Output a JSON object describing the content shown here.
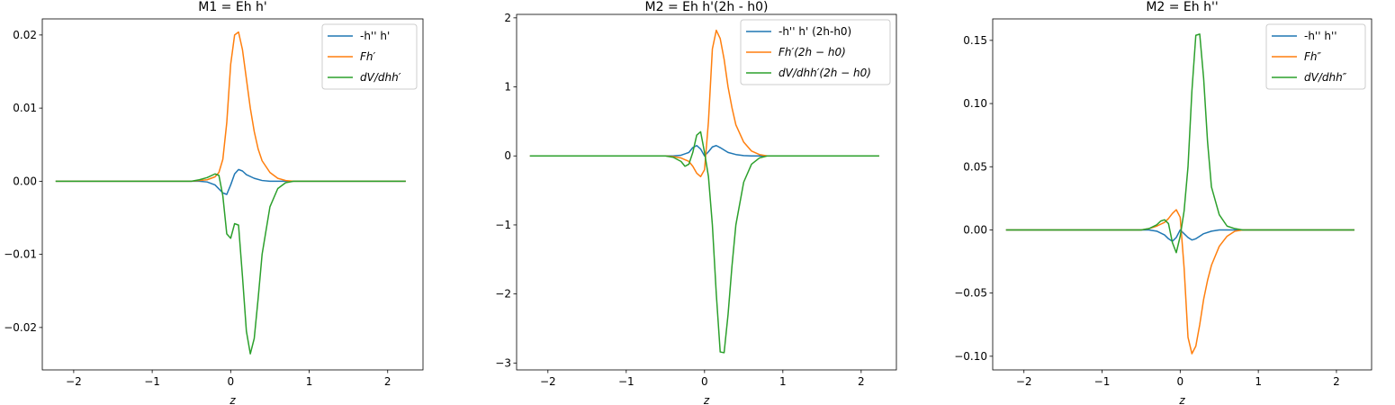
{
  "figure": {
    "background": "#ffffff"
  },
  "colors": {
    "blue": "#1f77b4",
    "orange": "#ff7f0e",
    "green": "#2ca02c"
  },
  "chart_data": [
    {
      "type": "line",
      "title": "M1 = Eh h'",
      "xlabel": "z",
      "ylabel": "",
      "xlim": [
        -2.4,
        2.45
      ],
      "ylim": [
        -0.0258,
        0.0222
      ],
      "xticks": [
        -2,
        -1,
        0,
        1,
        2
      ],
      "xtick_labels": [
        "−2",
        "−1",
        "0",
        "1",
        "2"
      ],
      "yticks": [
        -0.02,
        -0.01,
        0.0,
        0.01,
        0.02
      ],
      "ytick_labels": [
        "−0.02",
        "−0.01",
        "0.00",
        "0.01",
        "0.02"
      ],
      "legend_position": "top-right",
      "series": [
        {
          "name": "-h'' h'",
          "italic": false,
          "color": "#1f77b4",
          "x": [
            -2.23,
            -0.4,
            -0.3,
            -0.2,
            -0.1,
            -0.05,
            0.0,
            0.05,
            0.1,
            0.15,
            0.2,
            0.3,
            0.4,
            0.5,
            0.6,
            2.23
          ],
          "y": [
            0,
            0,
            -0.0001,
            -0.0005,
            -0.0016,
            -0.0018,
            -0.0005,
            0.001,
            0.0016,
            0.0014,
            0.0009,
            0.0004,
            0.0001,
            0,
            0,
            0
          ]
        },
        {
          "name": "Fh′",
          "italic": true,
          "color": "#ff7f0e",
          "x": [
            -2.23,
            -0.5,
            -0.4,
            -0.3,
            -0.2,
            -0.15,
            -0.1,
            -0.05,
            0.0,
            0.05,
            0.1,
            0.15,
            0.2,
            0.25,
            0.3,
            0.35,
            0.4,
            0.5,
            0.6,
            0.7,
            0.8,
            2.23
          ],
          "y": [
            0,
            0,
            0.0001,
            0.0002,
            0.0006,
            0.0012,
            0.003,
            0.008,
            0.016,
            0.02,
            0.0204,
            0.018,
            0.014,
            0.01,
            0.0068,
            0.0044,
            0.0028,
            0.0012,
            0.0004,
            0.0001,
            0,
            0
          ]
        },
        {
          "name": "dV/dhh′",
          "italic": true,
          "color": "#2ca02c",
          "x": [
            -2.23,
            -0.5,
            -0.4,
            -0.3,
            -0.2,
            -0.15,
            -0.1,
            -0.05,
            0.0,
            0.05,
            0.1,
            0.15,
            0.2,
            0.25,
            0.3,
            0.35,
            0.4,
            0.5,
            0.6,
            0.7,
            0.8,
            2.23
          ],
          "y": [
            0,
            0,
            0.0002,
            0.0005,
            0.001,
            0.0008,
            -0.002,
            -0.0072,
            -0.0078,
            -0.0058,
            -0.006,
            -0.013,
            -0.0205,
            -0.0236,
            -0.0215,
            -0.016,
            -0.01,
            -0.0035,
            -0.001,
            -0.0002,
            0,
            0
          ]
        }
      ]
    },
    {
      "type": "line",
      "title": "M2 = Eh h'(2h - h0)",
      "xlabel": "z",
      "ylabel": "",
      "xlim": [
        -2.4,
        2.45
      ],
      "ylim": [
        -3.1,
        2.05
      ],
      "xticks": [
        -2,
        -1,
        0,
        1,
        2
      ],
      "xtick_labels": [
        "−2",
        "−1",
        "0",
        "1",
        "2"
      ],
      "yticks": [
        -3,
        -2,
        -1,
        0,
        1,
        2
      ],
      "ytick_labels": [
        "−3",
        "−2",
        "−1",
        "0",
        "1",
        "2"
      ],
      "legend_position": "top-right",
      "series": [
        {
          "name": "-h'' h' (2h-h0)",
          "italic": false,
          "color": "#1f77b4",
          "x": [
            -2.23,
            -0.4,
            -0.3,
            -0.2,
            -0.15,
            -0.1,
            -0.05,
            0.0,
            0.05,
            0.1,
            0.15,
            0.2,
            0.3,
            0.4,
            0.5,
            0.6,
            2.23
          ],
          "y": [
            0,
            0,
            0.01,
            0.05,
            0.12,
            0.15,
            0.1,
            0.0,
            0.06,
            0.13,
            0.15,
            0.12,
            0.05,
            0.02,
            0.005,
            0,
            0
          ]
        },
        {
          "name": "Fh′(2h − h0)",
          "italic": true,
          "color": "#ff7f0e",
          "x": [
            -2.23,
            -0.5,
            -0.4,
            -0.3,
            -0.2,
            -0.15,
            -0.1,
            -0.05,
            0.0,
            0.05,
            0.1,
            0.15,
            0.2,
            0.25,
            0.3,
            0.35,
            0.4,
            0.5,
            0.6,
            0.7,
            0.8,
            2.23
          ],
          "y": [
            0,
            0,
            -0.01,
            -0.03,
            -0.08,
            -0.15,
            -0.25,
            -0.3,
            -0.2,
            0.5,
            1.55,
            1.82,
            1.7,
            1.4,
            1.0,
            0.7,
            0.45,
            0.2,
            0.07,
            0.02,
            0,
            0
          ]
        },
        {
          "name": "dV/dhh′(2h − h0)",
          "italic": true,
          "color": "#2ca02c",
          "x": [
            -2.23,
            -0.5,
            -0.4,
            -0.3,
            -0.25,
            -0.2,
            -0.15,
            -0.1,
            -0.05,
            0.0,
            0.05,
            0.1,
            0.15,
            0.2,
            0.25,
            0.3,
            0.35,
            0.4,
            0.5,
            0.6,
            0.7,
            0.8,
            2.23
          ],
          "y": [
            0,
            0,
            -0.02,
            -0.08,
            -0.15,
            -0.12,
            0.05,
            0.3,
            0.35,
            0.05,
            -0.3,
            -1.0,
            -2.0,
            -2.84,
            -2.85,
            -2.3,
            -1.6,
            -1.0,
            -0.38,
            -0.12,
            -0.03,
            0,
            0
          ]
        }
      ]
    },
    {
      "type": "line",
      "title": "M2 = Eh h''",
      "xlabel": "z",
      "ylabel": "",
      "xlim": [
        -2.4,
        2.45
      ],
      "ylim": [
        -0.1108,
        0.167
      ],
      "xticks": [
        -2,
        -1,
        0,
        1,
        2
      ],
      "xtick_labels": [
        "−2",
        "−1",
        "0",
        "1",
        "2"
      ],
      "yticks": [
        -0.1,
        -0.05,
        0.0,
        0.05,
        0.1,
        0.15
      ],
      "ytick_labels": [
        "−0.10",
        "−0.05",
        "0.00",
        "0.05",
        "0.10",
        "0.15"
      ],
      "legend_position": "top-right",
      "series": [
        {
          "name": "-h'' h''",
          "italic": false,
          "color": "#1f77b4",
          "x": [
            -2.23,
            -0.4,
            -0.3,
            -0.2,
            -0.15,
            -0.1,
            -0.05,
            0.0,
            0.05,
            0.1,
            0.15,
            0.2,
            0.25,
            0.3,
            0.4,
            0.5,
            0.6,
            2.23
          ],
          "y": [
            0,
            0,
            -0.001,
            -0.004,
            -0.007,
            -0.009,
            -0.006,
            0.0,
            -0.003,
            -0.006,
            -0.008,
            -0.007,
            -0.005,
            -0.003,
            -0.001,
            0,
            0,
            0
          ]
        },
        {
          "name": "Fh″",
          "italic": true,
          "color": "#ff7f0e",
          "x": [
            -2.23,
            -0.5,
            -0.4,
            -0.3,
            -0.2,
            -0.15,
            -0.1,
            -0.05,
            0.0,
            0.05,
            0.1,
            0.15,
            0.2,
            0.25,
            0.3,
            0.35,
            0.4,
            0.5,
            0.6,
            0.7,
            0.8,
            2.23
          ],
          "y": [
            0,
            0,
            0.001,
            0.003,
            0.006,
            0.009,
            0.013,
            0.016,
            0.01,
            -0.03,
            -0.085,
            -0.098,
            -0.092,
            -0.075,
            -0.055,
            -0.04,
            -0.028,
            -0.013,
            -0.005,
            -0.001,
            0,
            0
          ]
        },
        {
          "name": "dV/dhh″",
          "italic": true,
          "color": "#2ca02c",
          "x": [
            -2.23,
            -0.5,
            -0.4,
            -0.3,
            -0.25,
            -0.2,
            -0.15,
            -0.1,
            -0.05,
            0.0,
            0.05,
            0.1,
            0.15,
            0.2,
            0.25,
            0.3,
            0.35,
            0.4,
            0.5,
            0.6,
            0.7,
            0.8,
            2.23
          ],
          "y": [
            0,
            0,
            0.001,
            0.004,
            0.007,
            0.008,
            0.005,
            -0.01,
            -0.018,
            -0.005,
            0.015,
            0.05,
            0.11,
            0.154,
            0.155,
            0.12,
            0.07,
            0.034,
            0.012,
            0.003,
            0.001,
            0,
            0
          ]
        }
      ]
    }
  ]
}
